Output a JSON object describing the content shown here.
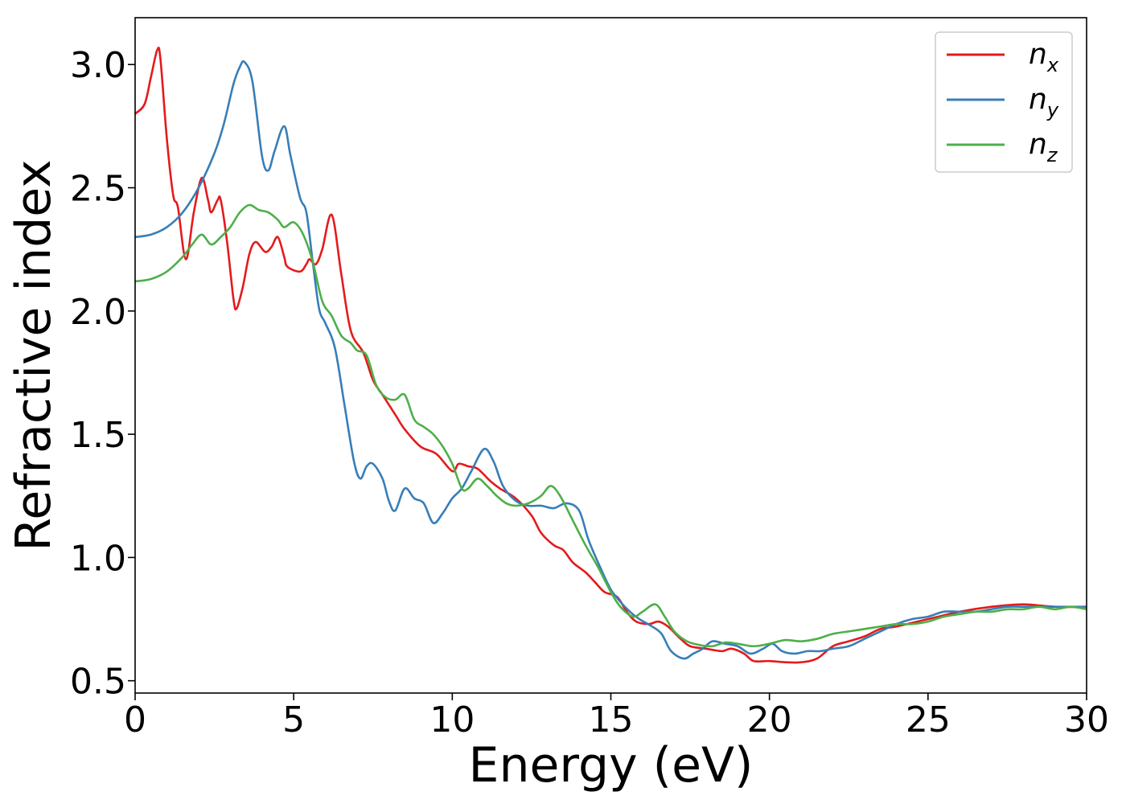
{
  "chart_data": {
    "type": "line",
    "title": "",
    "xlabel": "Energy (eV)",
    "ylabel": "Refractive index",
    "xlim": [
      0,
      30
    ],
    "ylim": [
      0.45,
      3.19
    ],
    "xticks": [
      0,
      5,
      10,
      15,
      20,
      25,
      30
    ],
    "yticks": [
      0.5,
      1.0,
      1.5,
      2.0,
      2.5,
      3.0
    ],
    "xtick_labels": [
      "0",
      "5",
      "10",
      "15",
      "20",
      "25",
      "30"
    ],
    "ytick_labels": [
      "0.5",
      "1.0",
      "1.5",
      "2.0",
      "2.5",
      "3.0"
    ],
    "grid": false,
    "legend_position": "top-right",
    "series": [
      {
        "name": "n",
        "subscript": "x",
        "color": "#e41a1c",
        "points": [
          [
            0,
            2.8
          ],
          [
            0.3,
            2.84
          ],
          [
            0.5,
            2.95
          ],
          [
            0.7,
            3.06
          ],
          [
            0.8,
            3.02
          ],
          [
            1.0,
            2.7
          ],
          [
            1.2,
            2.47
          ],
          [
            1.35,
            2.42
          ],
          [
            1.6,
            2.21
          ],
          [
            1.85,
            2.4
          ],
          [
            2.1,
            2.54
          ],
          [
            2.3,
            2.45
          ],
          [
            2.4,
            2.4
          ],
          [
            2.6,
            2.45
          ],
          [
            2.7,
            2.45
          ],
          [
            2.9,
            2.28
          ],
          [
            3.1,
            2.05
          ],
          [
            3.2,
            2.01
          ],
          [
            3.4,
            2.1
          ],
          [
            3.6,
            2.23
          ],
          [
            3.8,
            2.28
          ],
          [
            4.1,
            2.24
          ],
          [
            4.3,
            2.26
          ],
          [
            4.5,
            2.3
          ],
          [
            4.7,
            2.22
          ],
          [
            4.8,
            2.18
          ],
          [
            5.2,
            2.16
          ],
          [
            5.4,
            2.19
          ],
          [
            5.5,
            2.21
          ],
          [
            5.7,
            2.19
          ],
          [
            5.9,
            2.25
          ],
          [
            6.2,
            2.39
          ],
          [
            6.5,
            2.15
          ],
          [
            6.8,
            1.92
          ],
          [
            7.2,
            1.83
          ],
          [
            7.5,
            1.72
          ],
          [
            7.8,
            1.66
          ],
          [
            8.2,
            1.58
          ],
          [
            8.5,
            1.52
          ],
          [
            9.0,
            1.45
          ],
          [
            9.5,
            1.42
          ],
          [
            10.0,
            1.35
          ],
          [
            10.2,
            1.38
          ],
          [
            10.5,
            1.37
          ],
          [
            10.8,
            1.36
          ],
          [
            11.2,
            1.31
          ],
          [
            11.5,
            1.28
          ],
          [
            12.0,
            1.24
          ],
          [
            12.5,
            1.17
          ],
          [
            12.8,
            1.1
          ],
          [
            13.2,
            1.05
          ],
          [
            13.5,
            1.03
          ],
          [
            13.8,
            0.98
          ],
          [
            14.2,
            0.94
          ],
          [
            14.5,
            0.9
          ],
          [
            14.8,
            0.86
          ],
          [
            15.2,
            0.84
          ],
          [
            15.5,
            0.78
          ],
          [
            15.8,
            0.74
          ],
          [
            16.2,
            0.73
          ],
          [
            16.5,
            0.74
          ],
          [
            16.8,
            0.72
          ],
          [
            17.2,
            0.67
          ],
          [
            17.5,
            0.64
          ],
          [
            18.0,
            0.63
          ],
          [
            18.5,
            0.62
          ],
          [
            18.8,
            0.63
          ],
          [
            19.2,
            0.61
          ],
          [
            19.5,
            0.58
          ],
          [
            20.0,
            0.58
          ],
          [
            20.5,
            0.575
          ],
          [
            21.0,
            0.575
          ],
          [
            21.5,
            0.59
          ],
          [
            22.0,
            0.64
          ],
          [
            22.5,
            0.66
          ],
          [
            23.0,
            0.68
          ],
          [
            23.5,
            0.71
          ],
          [
            24.0,
            0.72
          ],
          [
            25.0,
            0.75
          ],
          [
            26.0,
            0.78
          ],
          [
            27.0,
            0.8
          ],
          [
            28.0,
            0.81
          ],
          [
            29.0,
            0.8
          ],
          [
            30.0,
            0.8
          ]
        ]
      },
      {
        "name": "n",
        "subscript": "y",
        "color": "#377eb8",
        "points": [
          [
            0,
            2.3
          ],
          [
            0.5,
            2.31
          ],
          [
            1.0,
            2.34
          ],
          [
            1.5,
            2.4
          ],
          [
            2.0,
            2.5
          ],
          [
            2.5,
            2.64
          ],
          [
            2.8,
            2.76
          ],
          [
            3.1,
            2.92
          ],
          [
            3.3,
            2.99
          ],
          [
            3.45,
            3.01
          ],
          [
            3.7,
            2.93
          ],
          [
            4.0,
            2.63
          ],
          [
            4.2,
            2.57
          ],
          [
            4.4,
            2.65
          ],
          [
            4.7,
            2.75
          ],
          [
            4.9,
            2.63
          ],
          [
            5.2,
            2.46
          ],
          [
            5.4,
            2.4
          ],
          [
            5.6,
            2.2
          ],
          [
            5.8,
            2.01
          ],
          [
            6.0,
            1.95
          ],
          [
            6.3,
            1.85
          ],
          [
            6.6,
            1.62
          ],
          [
            6.9,
            1.39
          ],
          [
            7.1,
            1.32
          ],
          [
            7.3,
            1.37
          ],
          [
            7.5,
            1.38
          ],
          [
            7.8,
            1.32
          ],
          [
            8.0,
            1.23
          ],
          [
            8.2,
            1.19
          ],
          [
            8.5,
            1.28
          ],
          [
            8.8,
            1.24
          ],
          [
            9.1,
            1.22
          ],
          [
            9.4,
            1.14
          ],
          [
            9.7,
            1.18
          ],
          [
            10.0,
            1.24
          ],
          [
            10.3,
            1.28
          ],
          [
            10.6,
            1.35
          ],
          [
            11.0,
            1.44
          ],
          [
            11.3,
            1.39
          ],
          [
            11.6,
            1.29
          ],
          [
            12.0,
            1.23
          ],
          [
            12.4,
            1.21
          ],
          [
            12.8,
            1.21
          ],
          [
            13.2,
            1.2
          ],
          [
            13.6,
            1.22
          ],
          [
            14.0,
            1.19
          ],
          [
            14.3,
            1.07
          ],
          [
            14.7,
            0.95
          ],
          [
            15.0,
            0.87
          ],
          [
            15.3,
            0.82
          ],
          [
            15.6,
            0.78
          ],
          [
            15.9,
            0.75
          ],
          [
            16.3,
            0.72
          ],
          [
            16.6,
            0.69
          ],
          [
            16.9,
            0.62
          ],
          [
            17.3,
            0.59
          ],
          [
            17.6,
            0.61
          ],
          [
            17.9,
            0.63
          ],
          [
            18.2,
            0.66
          ],
          [
            18.6,
            0.65
          ],
          [
            19.0,
            0.64
          ],
          [
            19.4,
            0.61
          ],
          [
            19.8,
            0.63
          ],
          [
            20.1,
            0.65
          ],
          [
            20.4,
            0.62
          ],
          [
            20.8,
            0.61
          ],
          [
            21.2,
            0.62
          ],
          [
            21.6,
            0.62
          ],
          [
            22.0,
            0.63
          ],
          [
            22.5,
            0.64
          ],
          [
            23.0,
            0.67
          ],
          [
            23.5,
            0.7
          ],
          [
            24.0,
            0.73
          ],
          [
            24.5,
            0.75
          ],
          [
            25.0,
            0.76
          ],
          [
            25.5,
            0.78
          ],
          [
            26.0,
            0.78
          ],
          [
            26.5,
            0.78
          ],
          [
            27.0,
            0.79
          ],
          [
            27.5,
            0.8
          ],
          [
            28.0,
            0.8
          ],
          [
            28.5,
            0.8
          ],
          [
            29.0,
            0.8
          ],
          [
            29.5,
            0.8
          ],
          [
            30.0,
            0.8
          ]
        ]
      },
      {
        "name": "n",
        "subscript": "z",
        "color": "#4daf4a",
        "points": [
          [
            0,
            2.12
          ],
          [
            0.5,
            2.13
          ],
          [
            1.0,
            2.16
          ],
          [
            1.5,
            2.22
          ],
          [
            1.8,
            2.27
          ],
          [
            2.1,
            2.31
          ],
          [
            2.4,
            2.27
          ],
          [
            2.7,
            2.3
          ],
          [
            3.0,
            2.34
          ],
          [
            3.3,
            2.4
          ],
          [
            3.6,
            2.43
          ],
          [
            3.9,
            2.41
          ],
          [
            4.2,
            2.4
          ],
          [
            4.5,
            2.37
          ],
          [
            4.7,
            2.34
          ],
          [
            5.0,
            2.36
          ],
          [
            5.3,
            2.31
          ],
          [
            5.6,
            2.2
          ],
          [
            5.9,
            2.04
          ],
          [
            6.2,
            1.98
          ],
          [
            6.5,
            1.9
          ],
          [
            6.8,
            1.87
          ],
          [
            7.0,
            1.84
          ],
          [
            7.3,
            1.82
          ],
          [
            7.6,
            1.7
          ],
          [
            7.9,
            1.65
          ],
          [
            8.2,
            1.64
          ],
          [
            8.5,
            1.66
          ],
          [
            8.8,
            1.56
          ],
          [
            9.1,
            1.53
          ],
          [
            9.4,
            1.5
          ],
          [
            9.7,
            1.45
          ],
          [
            10.0,
            1.38
          ],
          [
            10.3,
            1.28
          ],
          [
            10.5,
            1.28
          ],
          [
            10.8,
            1.32
          ],
          [
            11.1,
            1.29
          ],
          [
            11.4,
            1.25
          ],
          [
            11.7,
            1.22
          ],
          [
            12.0,
            1.21
          ],
          [
            12.4,
            1.22
          ],
          [
            12.8,
            1.25
          ],
          [
            13.1,
            1.29
          ],
          [
            13.4,
            1.25
          ],
          [
            13.8,
            1.15
          ],
          [
            14.2,
            1.05
          ],
          [
            14.6,
            0.96
          ],
          [
            15.0,
            0.86
          ],
          [
            15.3,
            0.8
          ],
          [
            15.7,
            0.76
          ],
          [
            16.0,
            0.78
          ],
          [
            16.4,
            0.81
          ],
          [
            16.7,
            0.76
          ],
          [
            17.0,
            0.7
          ],
          [
            17.4,
            0.66
          ],
          [
            17.8,
            0.645
          ],
          [
            18.2,
            0.64
          ],
          [
            18.6,
            0.655
          ],
          [
            19.0,
            0.65
          ],
          [
            19.5,
            0.64
          ],
          [
            20.0,
            0.65
          ],
          [
            20.5,
            0.665
          ],
          [
            21.0,
            0.66
          ],
          [
            21.5,
            0.67
          ],
          [
            22.0,
            0.69
          ],
          [
            22.5,
            0.7
          ],
          [
            23.0,
            0.71
          ],
          [
            23.5,
            0.72
          ],
          [
            24.0,
            0.73
          ],
          [
            24.5,
            0.73
          ],
          [
            25.0,
            0.74
          ],
          [
            25.5,
            0.76
          ],
          [
            26.0,
            0.77
          ],
          [
            26.5,
            0.78
          ],
          [
            27.0,
            0.78
          ],
          [
            27.5,
            0.79
          ],
          [
            28.0,
            0.79
          ],
          [
            28.5,
            0.8
          ],
          [
            29.0,
            0.79
          ],
          [
            29.5,
            0.8
          ],
          [
            30.0,
            0.79
          ]
        ]
      }
    ]
  }
}
